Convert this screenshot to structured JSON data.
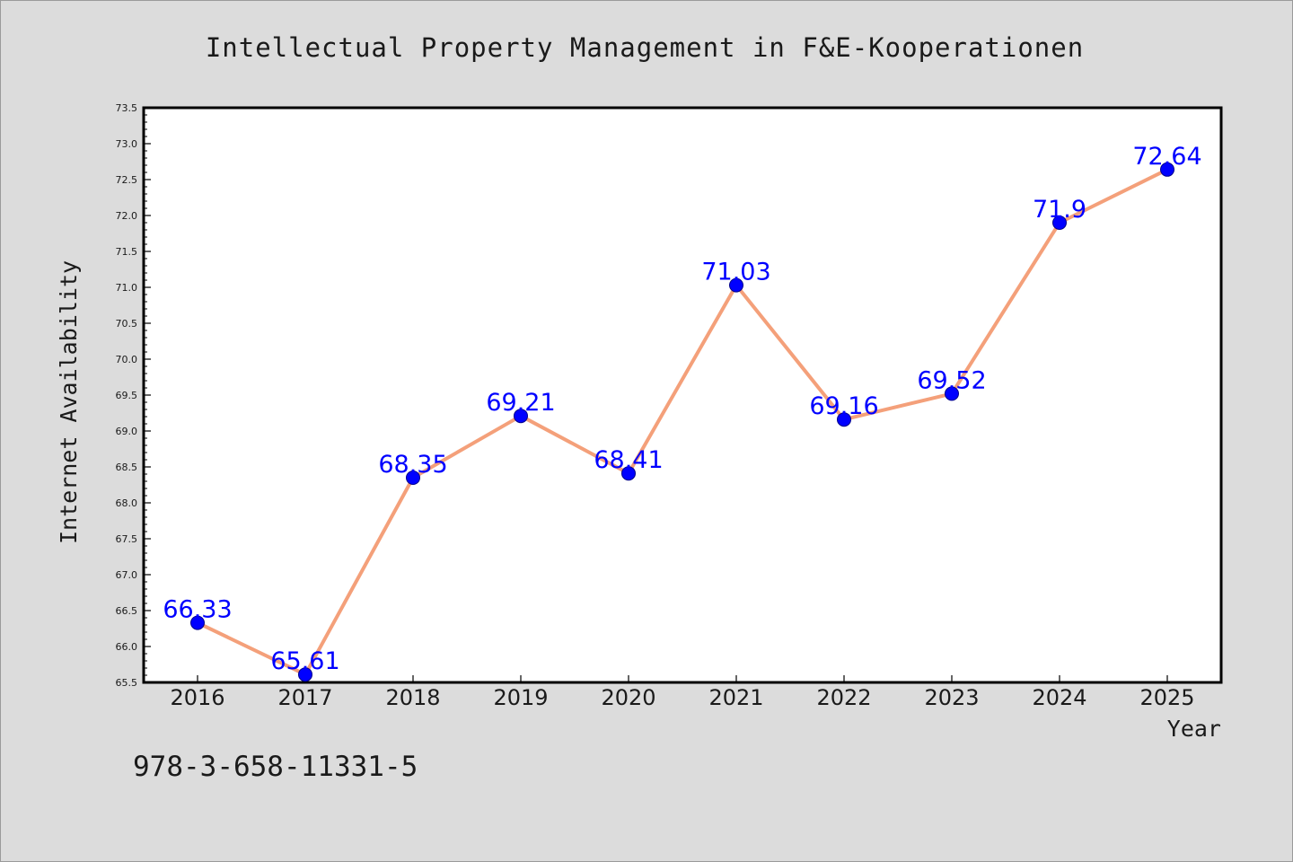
{
  "chart_data": {
    "type": "line",
    "title": "Intellectual Property Management in F&E-Kooperationen",
    "xlabel": "Year",
    "ylabel": "Internet Availability",
    "x": [
      "2016",
      "2017",
      "2018",
      "2019",
      "2020",
      "2021",
      "2022",
      "2023",
      "2024",
      "2025"
    ],
    "values": [
      66.33,
      65.61,
      68.35,
      69.21,
      68.41,
      71.03,
      69.16,
      69.52,
      71.9,
      72.64
    ],
    "data_labels": [
      "66.33",
      "65.61",
      "68.35",
      "69.21",
      "68.41",
      "71.03",
      "69.16",
      "69.52",
      "71.9",
      "72.64"
    ],
    "ylim": [
      65.5,
      73.5
    ],
    "yticks": [
      "65.5",
      "66.0",
      "66.5",
      "67.0",
      "67.5",
      "68.0",
      "68.5",
      "69.0",
      "69.5",
      "70.0",
      "70.5",
      "71.0",
      "71.5",
      "72.0",
      "72.5",
      "73.0",
      "73.5"
    ],
    "grid": false,
    "legend": "none",
    "colors": {
      "line": "#f4a07a",
      "marker": "#0000ff",
      "data_label": "#0000ff",
      "plot_background": "#ffffff",
      "figure_background": "#dcdcdc"
    }
  },
  "footer": {
    "isbn": "978-3-658-11331-5"
  }
}
